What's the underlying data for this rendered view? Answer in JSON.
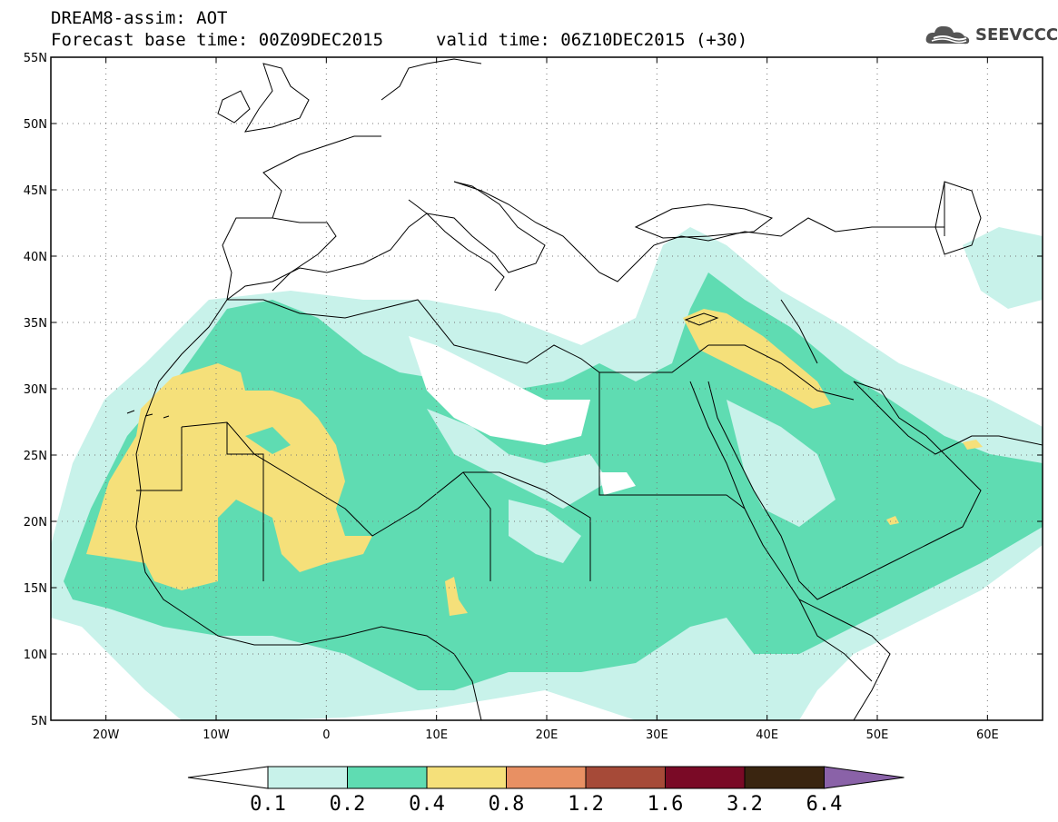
{
  "header": {
    "line1": "DREAM8-assim: AOT",
    "line2_left": "Forecast base time: 00Z09DEC2015",
    "line2_right": "valid time: 06Z10DEC2015 (+30)"
  },
  "logo": {
    "text": "SEEVCCC",
    "icon": "cloud-logo-icon"
  },
  "map": {
    "lon_range": [
      -25,
      65
    ],
    "lat_range": [
      5,
      55
    ],
    "lon_ticks": [
      "20W",
      "10W",
      "0",
      "10E",
      "20E",
      "30E",
      "40E",
      "50E",
      "60E"
    ],
    "lat_ticks": [
      "55N",
      "50N",
      "45N",
      "40N",
      "35N",
      "30N",
      "25N",
      "20N",
      "15N",
      "10N",
      "5N"
    ],
    "gridlines": "dotted"
  },
  "colorbar": {
    "levels": [
      "0.1",
      "0.2",
      "0.4",
      "0.8",
      "1.2",
      "1.6",
      "3.2",
      "6.4"
    ],
    "colors": [
      "#ffffff",
      "#c8f2ea",
      "#5fdcb2",
      "#f5e07a",
      "#e89063",
      "#a64a38",
      "#7a0a26",
      "#3a2510",
      "#8a62a8"
    ]
  },
  "colors": {
    "aot_01_02": "#c8f2ea",
    "aot_02_04": "#5fdcb2",
    "aot_04_08": "#f5e07a",
    "coast": "#000000"
  }
}
